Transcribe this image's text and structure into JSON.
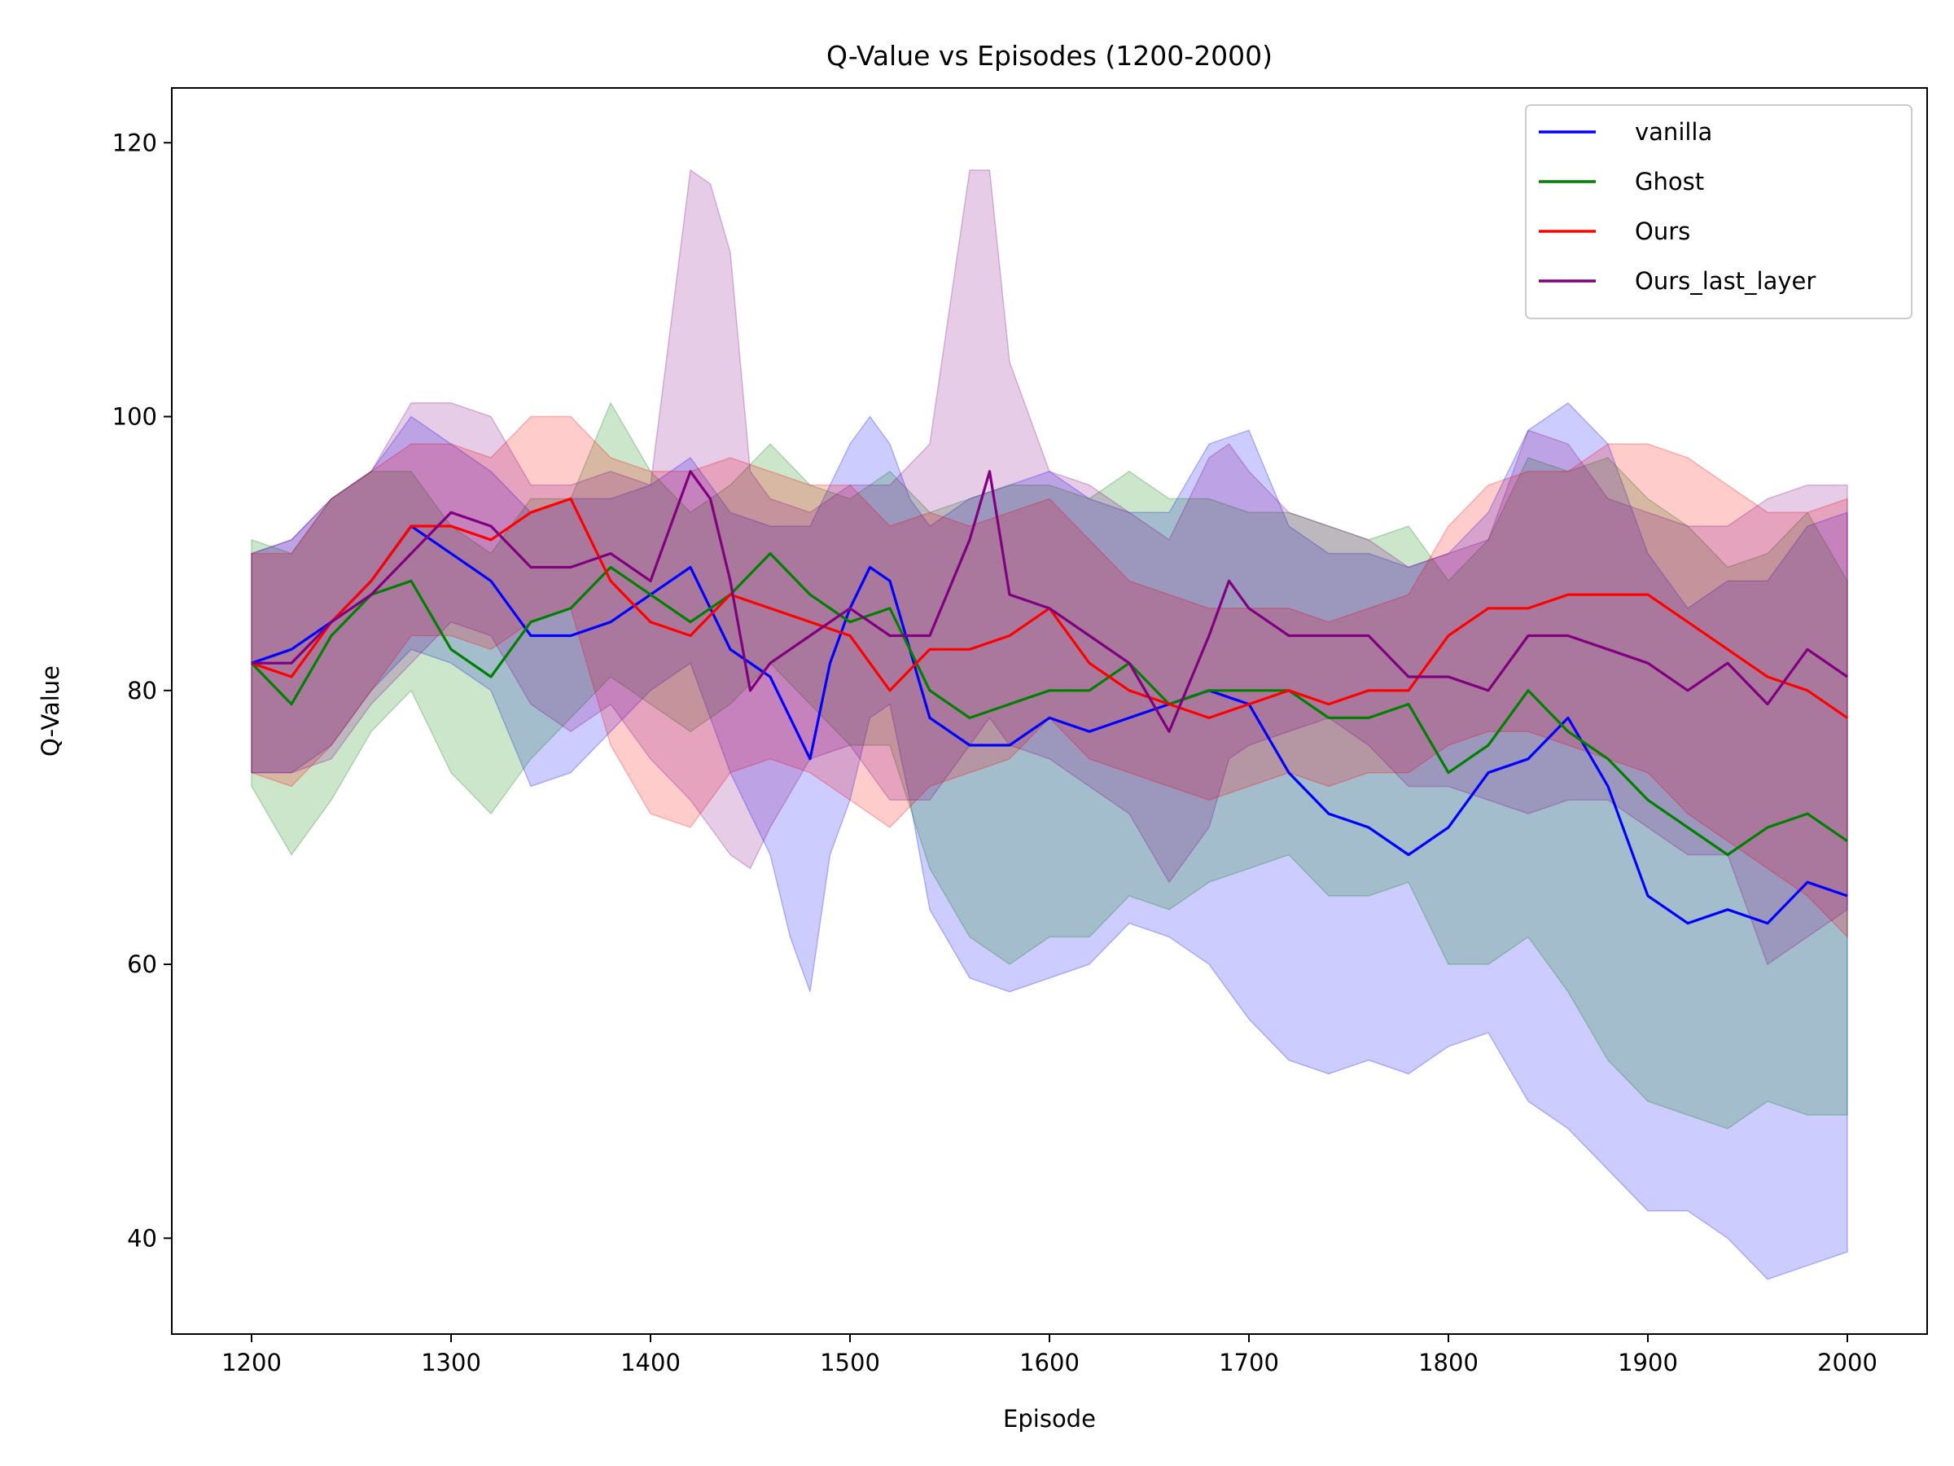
{
  "chart_data": {
    "type": "line",
    "title": "Q-Value vs Episodes (1200-2000)",
    "xlabel": "Episode",
    "ylabel": "Q-Value",
    "xlim": [
      1160,
      2040
    ],
    "ylim": [
      33,
      124
    ],
    "xticks": [
      1200,
      1300,
      1400,
      1500,
      1600,
      1700,
      1800,
      1900,
      2000
    ],
    "yticks": [
      40,
      60,
      80,
      100,
      120
    ],
    "legend_position": "top-right",
    "grid": false,
    "shaded_band": "mean ± spread per series",
    "series": [
      {
        "name": "vanilla",
        "color": "#0000ff",
        "x": [
          1200,
          1220,
          1240,
          1260,
          1280,
          1300,
          1320,
          1340,
          1360,
          1380,
          1400,
          1420,
          1440,
          1460,
          1470,
          1480,
          1490,
          1500,
          1510,
          1520,
          1530,
          1540,
          1560,
          1580,
          1600,
          1620,
          1640,
          1660,
          1680,
          1700,
          1720,
          1740,
          1760,
          1780,
          1800,
          1820,
          1840,
          1860,
          1880,
          1900,
          1920,
          1940,
          1960,
          1980,
          2000
        ],
        "y": [
          82,
          83,
          85,
          88,
          92,
          90,
          88,
          84,
          84,
          85,
          87,
          89,
          83,
          81,
          78,
          75,
          82,
          86,
          89,
          88,
          83,
          78,
          76,
          76,
          78,
          77,
          78,
          79,
          80,
          79,
          74,
          71,
          70,
          68,
          70,
          74,
          75,
          78,
          73,
          65,
          63,
          64,
          63,
          66,
          65
        ],
        "lower": [
          74,
          74,
          76,
          80,
          83,
          82,
          80,
          73,
          74,
          77,
          80,
          82,
          74,
          68,
          62,
          58,
          68,
          72,
          78,
          79,
          72,
          64,
          59,
          58,
          59,
          60,
          63,
          62,
          60,
          56,
          53,
          52,
          53,
          52,
          54,
          55,
          50,
          48,
          45,
          42,
          42,
          40,
          37,
          38,
          39
        ],
        "upper": [
          90,
          91,
          94,
          96,
          100,
          98,
          96,
          93,
          94,
          94,
          95,
          97,
          93,
          92,
          92,
          92,
          95,
          98,
          100,
          98,
          94,
          92,
          94,
          95,
          96,
          94,
          93,
          93,
          98,
          99,
          92,
          90,
          90,
          89,
          90,
          93,
          99,
          101,
          98,
          90,
          86,
          88,
          88,
          92,
          93
        ]
      },
      {
        "name": "Ghost",
        "color": "#008000",
        "x": [
          1200,
          1220,
          1240,
          1260,
          1280,
          1300,
          1320,
          1340,
          1360,
          1380,
          1400,
          1420,
          1440,
          1460,
          1480,
          1500,
          1520,
          1540,
          1560,
          1580,
          1600,
          1620,
          1640,
          1660,
          1680,
          1700,
          1720,
          1740,
          1760,
          1780,
          1800,
          1820,
          1840,
          1860,
          1880,
          1900,
          1920,
          1940,
          1960,
          1980,
          2000
        ],
        "y": [
          82,
          79,
          84,
          87,
          88,
          83,
          81,
          85,
          86,
          89,
          87,
          85,
          87,
          90,
          87,
          85,
          86,
          80,
          78,
          79,
          80,
          80,
          82,
          79,
          80,
          80,
          80,
          78,
          78,
          79,
          74,
          76,
          80,
          77,
          75,
          72,
          70,
          68,
          70,
          71,
          69
        ],
        "lower": [
          73,
          68,
          72,
          77,
          80,
          74,
          71,
          75,
          78,
          81,
          79,
          77,
          79,
          82,
          79,
          76,
          76,
          67,
          62,
          60,
          62,
          62,
          65,
          64,
          66,
          67,
          68,
          65,
          65,
          66,
          60,
          60,
          62,
          58,
          53,
          50,
          49,
          48,
          50,
          49,
          49
        ],
        "upper": [
          91,
          90,
          94,
          96,
          96,
          92,
          90,
          94,
          94,
          101,
          96,
          93,
          95,
          98,
          95,
          94,
          96,
          93,
          94,
          95,
          95,
          94,
          96,
          94,
          94,
          93,
          93,
          92,
          91,
          92,
          88,
          91,
          97,
          96,
          97,
          94,
          92,
          89,
          90,
          93,
          88
        ]
      },
      {
        "name": "Ours",
        "color": "#ff0000",
        "x": [
          1200,
          1220,
          1240,
          1260,
          1280,
          1300,
          1320,
          1340,
          1360,
          1380,
          1400,
          1420,
          1440,
          1460,
          1480,
          1500,
          1520,
          1540,
          1560,
          1580,
          1600,
          1620,
          1640,
          1660,
          1680,
          1700,
          1720,
          1740,
          1760,
          1780,
          1800,
          1820,
          1840,
          1860,
          1880,
          1900,
          1920,
          1940,
          1960,
          1980,
          2000
        ],
        "y": [
          82,
          81,
          85,
          88,
          92,
          92,
          91,
          93,
          94,
          88,
          85,
          84,
          87,
          86,
          85,
          84,
          80,
          83,
          83,
          84,
          86,
          82,
          80,
          79,
          78,
          79,
          80,
          79,
          80,
          80,
          84,
          86,
          86,
          87,
          87,
          87,
          85,
          83,
          81,
          80,
          78
        ],
        "lower": [
          74,
          73,
          76,
          80,
          84,
          84,
          83,
          85,
          86,
          76,
          71,
          70,
          74,
          75,
          74,
          72,
          70,
          73,
          74,
          75,
          78,
          75,
          74,
          73,
          72,
          73,
          74,
          73,
          74,
          74,
          76,
          77,
          77,
          76,
          75,
          74,
          71,
          69,
          67,
          65,
          62
        ],
        "upper": [
          90,
          90,
          94,
          96,
          98,
          98,
          97,
          100,
          100,
          97,
          96,
          96,
          97,
          96,
          95,
          95,
          92,
          93,
          92,
          93,
          94,
          91,
          88,
          87,
          86,
          86,
          86,
          85,
          86,
          87,
          92,
          95,
          96,
          96,
          98,
          98,
          97,
          95,
          93,
          93,
          94
        ]
      },
      {
        "name": "Ours_last_layer",
        "color": "#800080",
        "x": [
          1200,
          1220,
          1240,
          1260,
          1280,
          1300,
          1320,
          1340,
          1360,
          1380,
          1400,
          1420,
          1430,
          1440,
          1450,
          1460,
          1480,
          1500,
          1520,
          1540,
          1560,
          1570,
          1580,
          1600,
          1620,
          1640,
          1660,
          1680,
          1690,
          1700,
          1720,
          1740,
          1760,
          1780,
          1800,
          1820,
          1840,
          1860,
          1880,
          1900,
          1920,
          1940,
          1960,
          1980,
          2000
        ],
        "y": [
          82,
          82,
          85,
          87,
          90,
          93,
          92,
          89,
          89,
          90,
          88,
          96,
          94,
          88,
          80,
          82,
          84,
          86,
          84,
          84,
          91,
          96,
          87,
          86,
          84,
          82,
          77,
          84,
          88,
          86,
          84,
          84,
          84,
          81,
          81,
          80,
          84,
          84,
          83,
          82,
          80,
          82,
          79,
          83,
          81
        ],
        "lower": [
          74,
          74,
          75,
          79,
          82,
          85,
          84,
          79,
          77,
          79,
          75,
          72,
          70,
          68,
          67,
          70,
          75,
          76,
          72,
          72,
          76,
          78,
          76,
          75,
          73,
          71,
          66,
          70,
          75,
          76,
          77,
          78,
          76,
          73,
          73,
          72,
          71,
          72,
          72,
          70,
          68,
          68,
          60,
          62,
          64
        ],
        "upper": [
          90,
          91,
          94,
          96,
          101,
          101,
          100,
          95,
          95,
          96,
          95,
          118,
          117,
          112,
          96,
          94,
          93,
          95,
          95,
          98,
          118,
          118,
          104,
          96,
          95,
          93,
          91,
          97,
          98,
          96,
          93,
          92,
          91,
          89,
          90,
          91,
          99,
          98,
          94,
          93,
          92,
          92,
          94,
          95,
          95
        ]
      }
    ]
  }
}
